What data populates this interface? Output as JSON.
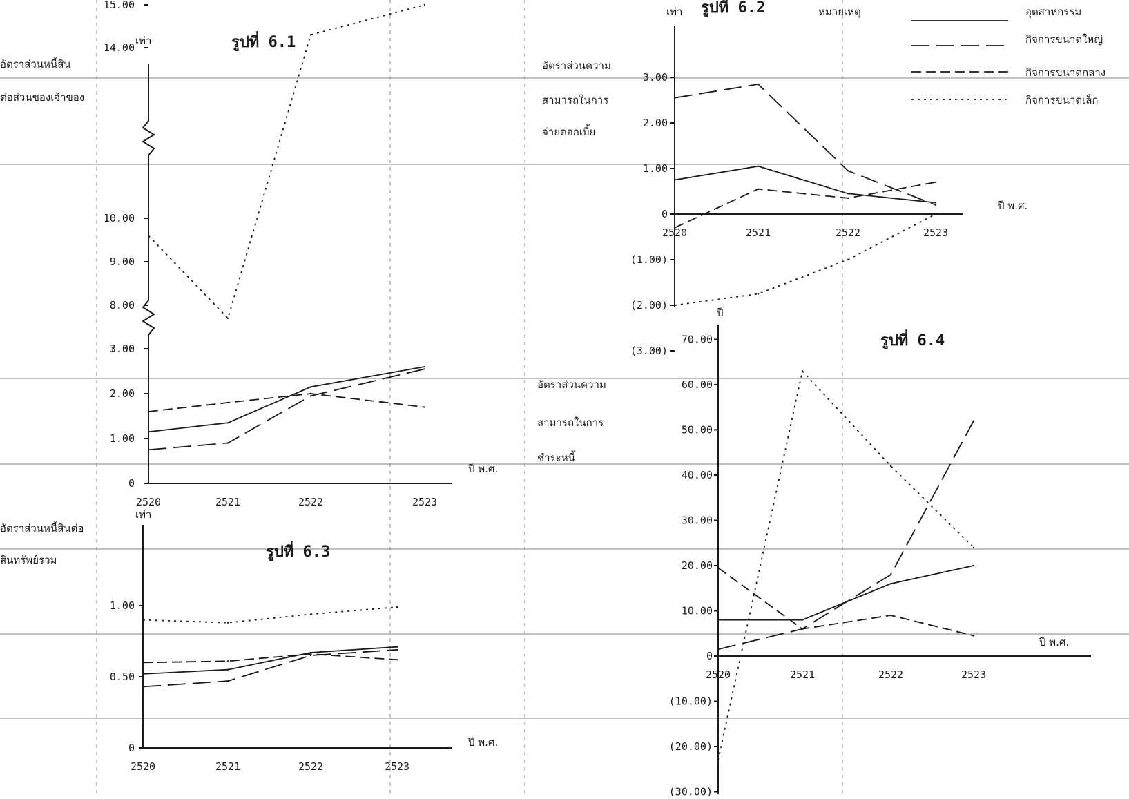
{
  "legend": {
    "heading": "หมายเหตุ",
    "items": [
      {
        "label": "อุตสาหกรรม",
        "dash": "solid"
      },
      {
        "label": "กิจการขนาดใหญ่",
        "dash": "long"
      },
      {
        "label": "กิจการขนาดกลาง",
        "dash": "medium"
      },
      {
        "label": "กิจการขนาดเล็ก",
        "dash": "dotted"
      }
    ]
  },
  "chart_data": [
    {
      "id": "fig61",
      "type": "line",
      "title": "รูปที่ 6.1",
      "unit": "เท่า",
      "ylabel": [
        "อัตราส่วนหนี้สิน",
        "ต่อส่วนของเจ้าของ"
      ],
      "xlabel": "ปี พ.ศ.",
      "x": [
        "2520",
        "2521",
        "2522",
        "2523"
      ],
      "yticks": [
        "0",
        "1.00",
        "2.00",
        "3.00",
        "7.00",
        "8.00",
        "9.00",
        "10.00",
        "14.00",
        "15.00"
      ],
      "broken_axis": true,
      "series": [
        {
          "dash": "solid",
          "values": [
            1.15,
            1.35,
            2.15,
            2.6
          ]
        },
        {
          "dash": "long",
          "values": [
            0.75,
            0.9,
            1.95,
            2.55
          ]
        },
        {
          "dash": "medium",
          "values": [
            1.6,
            1.8,
            2.0,
            1.7
          ]
        },
        {
          "dash": "dotted",
          "values": [
            9.6,
            7.7,
            14.3,
            15.0
          ]
        }
      ]
    },
    {
      "id": "fig62",
      "type": "line",
      "title": "รูปที่ 6.2",
      "unit": "เท่า",
      "ylabel": [
        "อัตราส่วนความ",
        "สามารถในการ",
        "จ่ายดอกเบี้ย"
      ],
      "xlabel": "ปี พ.ศ.",
      "x": [
        "2520",
        "2521",
        "2522",
        "2523"
      ],
      "yticks": [
        "3.00",
        "2.00",
        "1.00",
        "0",
        "(1.00)",
        "(2.00)",
        "(3.00)"
      ],
      "ylim": [
        -2.0,
        3.0
      ],
      "series": [
        {
          "dash": "solid",
          "values": [
            0.75,
            1.05,
            0.45,
            0.25
          ]
        },
        {
          "dash": "long",
          "values": [
            2.55,
            2.85,
            0.95,
            0.2
          ]
        },
        {
          "dash": "medium",
          "values": [
            -0.3,
            0.55,
            0.35,
            0.7
          ]
        },
        {
          "dash": "dotted",
          "values": [
            -2.0,
            -1.75,
            -1.0,
            0.0
          ]
        }
      ]
    },
    {
      "id": "fig63",
      "type": "line",
      "title": "รูปที่ 6.3",
      "unit": "เท่า",
      "ylabel": [
        "อัตราส่วนหนี้สินต่อ",
        "สินทรัพย์รวม"
      ],
      "xlabel": "ปี พ.ศ.",
      "x": [
        "2520",
        "2521",
        "2522",
        "2523"
      ],
      "yticks": [
        "0",
        "0.50",
        "1.00"
      ],
      "ylim": [
        0,
        1.0
      ],
      "series": [
        {
          "dash": "solid",
          "values": [
            0.52,
            0.55,
            0.67,
            0.71
          ]
        },
        {
          "dash": "long",
          "values": [
            0.43,
            0.47,
            0.65,
            0.69
          ]
        },
        {
          "dash": "medium",
          "values": [
            0.6,
            0.61,
            0.66,
            0.62
          ]
        },
        {
          "dash": "dotted",
          "values": [
            0.9,
            0.88,
            0.94,
            0.99
          ]
        }
      ]
    },
    {
      "id": "fig64",
      "type": "line",
      "title": "รูปที่ 6.4",
      "unit": "ปี",
      "ylabel": [
        "อัตราส่วนความ",
        "สามารถในการ",
        "ชำระหนี้"
      ],
      "xlabel": "ปี พ.ศ.",
      "x": [
        "2520",
        "2521",
        "2522",
        "2523"
      ],
      "yticks": [
        "70.00",
        "60.00",
        "50.00",
        "40.00",
        "30.00",
        "20.00",
        "10.00",
        "0",
        "(10.00)",
        "(20.00)",
        "(30.00)"
      ],
      "ylim": [
        -30.0,
        70.0
      ],
      "series": [
        {
          "dash": "solid",
          "values": [
            8.0,
            8.0,
            16.0,
            20.0
          ]
        },
        {
          "dash": "long",
          "values": [
            1.5,
            6.0,
            18.0,
            52.0
          ]
        },
        {
          "dash": "medium",
          "values": [
            19.5,
            6.0,
            9.0,
            4.5
          ]
        },
        {
          "dash": "dotted",
          "values": [
            -23.0,
            63.0,
            42.0,
            24.0
          ]
        }
      ]
    }
  ]
}
